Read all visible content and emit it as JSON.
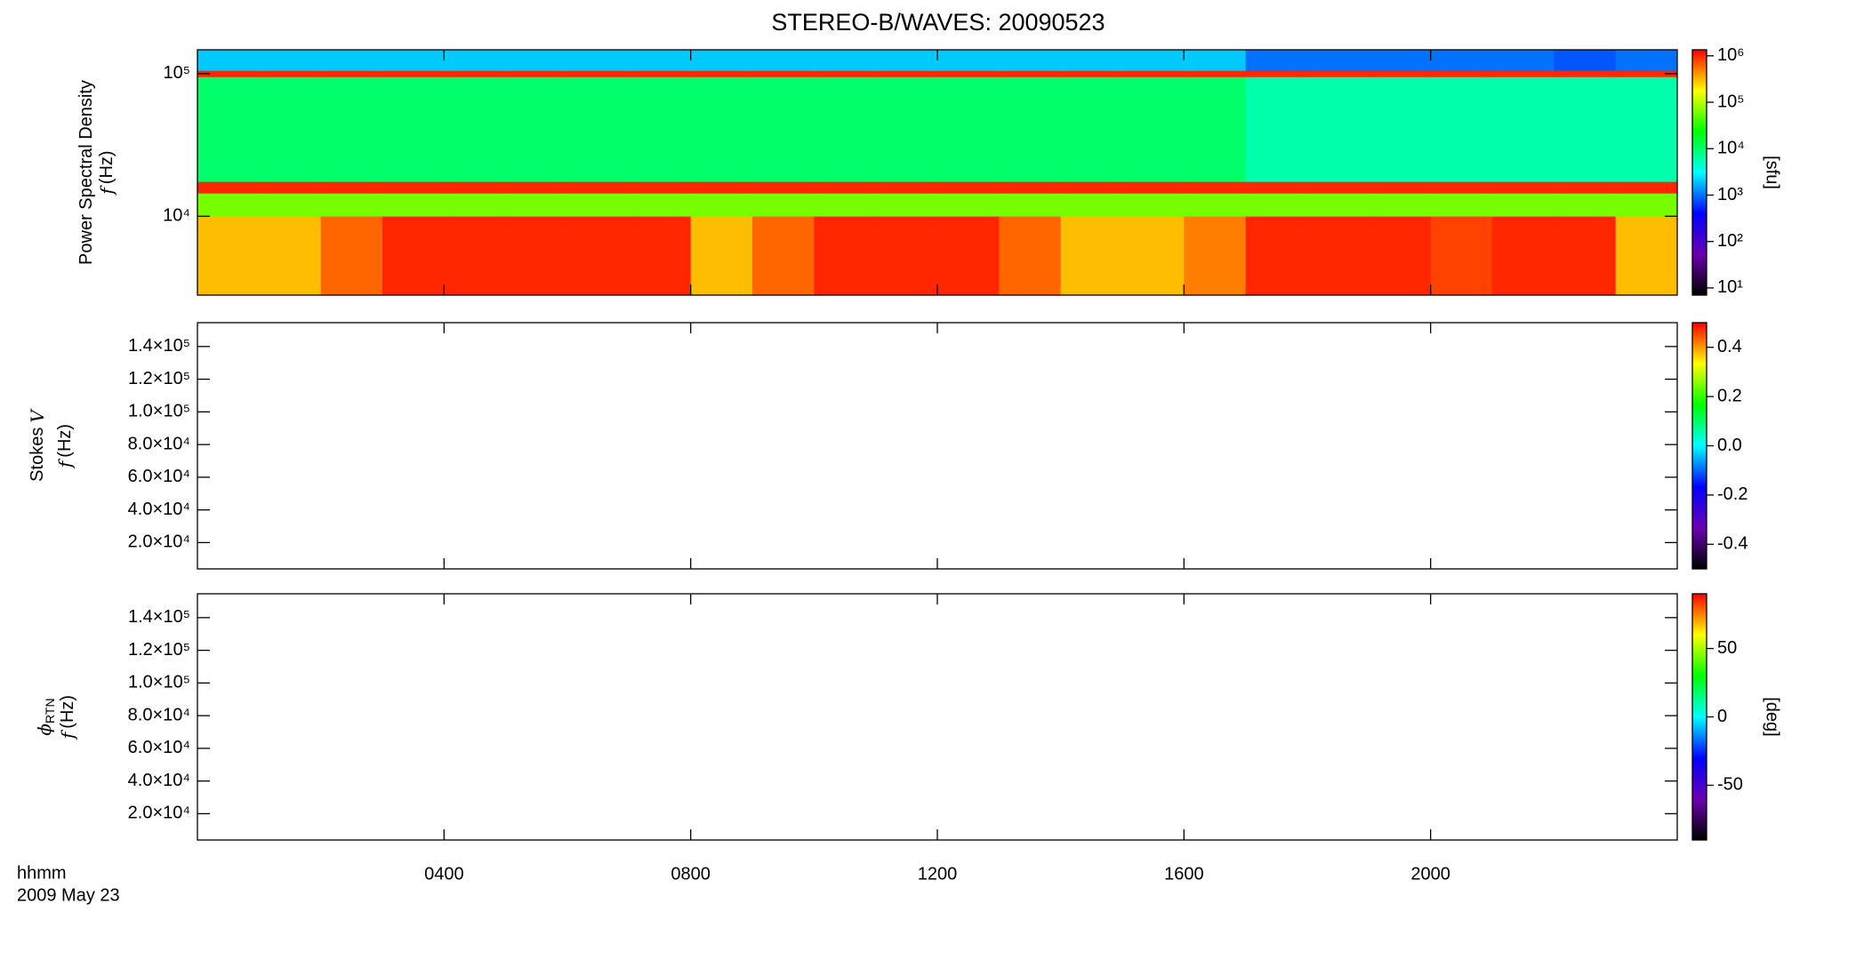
{
  "chart_data": {
    "type": "spectrogram",
    "title": "STEREO-B/WAVES: 20090523",
    "x_label": "hhmm",
    "date_label": "2009 May 23",
    "xlim": [
      0,
      24
    ],
    "xticks": [
      {
        "value": 4,
        "label": "0400"
      },
      {
        "value": 8,
        "label": "0800"
      },
      {
        "value": 12,
        "label": "1200"
      },
      {
        "value": 16,
        "label": "1600"
      },
      {
        "value": 20,
        "label": "2000"
      }
    ],
    "colorscale": [
      "#000000",
      "#6a00b0",
      "#0000ff",
      "#00ffff",
      "#00ff00",
      "#ffff00",
      "#ff0000"
    ],
    "panels": [
      {
        "ylabel": "Power Spectral Density",
        "f_symbol": "f",
        "f_unit": "(Hz)",
        "ylog": true,
        "ylim": [
          2800,
          147000
        ],
        "yticks": [
          {
            "value": 10000,
            "label": "10⁴"
          },
          {
            "value": 100000,
            "label": "10⁵"
          }
        ],
        "time_edges": [
          0,
          1,
          2,
          3,
          4,
          5,
          6,
          7,
          8,
          9,
          10,
          11,
          12,
          13,
          14,
          15,
          16,
          17,
          18,
          19,
          20,
          21,
          22,
          23,
          24
        ],
        "freq_edges": [
          2800,
          10000,
          14500,
          17500,
          95000,
          105000,
          147000
        ],
        "z": [
          [
            300000,
            300000,
            600000,
            1000000,
            1000000,
            1000000,
            1000000,
            1000000,
            300000,
            600000,
            1000000,
            1000000,
            1000000,
            600000,
            300000,
            300000,
            500000,
            1000000,
            1000000,
            1000000,
            800000,
            1000000,
            1000000,
            300000
          ],
          [
            60000,
            60000,
            60000,
            60000,
            60000,
            60000,
            60000,
            60000,
            60000,
            60000,
            60000,
            60000,
            60000,
            60000,
            60000,
            60000,
            60000,
            60000,
            60000,
            60000,
            60000,
            60000,
            60000,
            60000
          ],
          [
            1000000,
            1000000,
            1000000,
            1000000,
            1000000,
            1000000,
            1000000,
            1000000,
            1000000,
            1000000,
            1000000,
            1000000,
            1000000,
            1000000,
            1000000,
            1000000,
            1000000,
            1000000,
            1000000,
            1000000,
            1000000,
            1000000,
            1000000,
            1000000
          ],
          [
            10000,
            10000,
            10000,
            10000,
            10000,
            10000,
            10000,
            10000,
            10000,
            10000,
            10000,
            10000,
            10000,
            10000,
            10000,
            10000,
            10000,
            6000,
            6000,
            6000,
            6000,
            6000,
            6000,
            6000
          ],
          [
            1000000,
            1000000,
            1000000,
            1000000,
            1000000,
            1000000,
            1000000,
            1000000,
            1000000,
            1000000,
            1000000,
            1000000,
            1000000,
            1000000,
            1000000,
            1000000,
            1000000,
            1000000,
            1000000,
            1000000,
            1000000,
            1000000,
            1000000,
            1000000
          ],
          [
            2000,
            2000,
            2000,
            2000,
            2000,
            2000,
            2000,
            2000,
            2000,
            2000,
            2000,
            2000,
            2000,
            2000,
            2000,
            2000,
            2000,
            1000,
            1000,
            1000,
            1000,
            1000,
            800,
            1000
          ]
        ],
        "clog": true,
        "clim": [
          7,
          1350000
        ],
        "cticks": [
          {
            "value": 10,
            "label": "10¹"
          },
          {
            "value": 100,
            "label": "10²"
          },
          {
            "value": 1000,
            "label": "10³"
          },
          {
            "value": 10000,
            "label": "10⁴"
          },
          {
            "value": 100000,
            "label": "10⁵"
          },
          {
            "value": 1000000,
            "label": "10⁶"
          }
        ],
        "clabel": "[sfu]"
      },
      {
        "ylabel": "Stokes",
        "ylabel_symbol": "V",
        "f_symbol": "f",
        "f_unit": "(Hz)",
        "ylog": false,
        "ylim": [
          3900,
          154600
        ],
        "yticks": [
          {
            "value": 20000,
            "label": "2.0×10⁴"
          },
          {
            "value": 40000,
            "label": "4.0×10⁴"
          },
          {
            "value": 60000,
            "label": "6.0×10⁴"
          },
          {
            "value": 80000,
            "label": "8.0×10⁴"
          },
          {
            "value": 100000,
            "label": "1.0×10⁵"
          },
          {
            "value": 120000,
            "label": "1.2×10⁵"
          },
          {
            "value": 140000,
            "label": "1.4×10⁵"
          }
        ],
        "clog": false,
        "clim": [
          -0.5,
          0.5
        ],
        "cticks": [
          -0.4,
          -0.2,
          {
            "value": 0,
            "label": "0.0"
          },
          0.2,
          0.4
        ]
      },
      {
        "ylabel_symbol": "ϕ",
        "ylabel_sub": "RTN",
        "f_symbol": "f",
        "f_unit": "(Hz)",
        "ylog": false,
        "ylim": [
          3900,
          154600
        ],
        "yticks": [
          {
            "value": 20000,
            "label": "2.0×10⁴"
          },
          {
            "value": 40000,
            "label": "4.0×10⁴"
          },
          {
            "value": 60000,
            "label": "6.0×10⁴"
          },
          {
            "value": 80000,
            "label": "8.0×10⁴"
          },
          {
            "value": 100000,
            "label": "1.0×10⁵"
          },
          {
            "value": 120000,
            "label": "1.2×10⁵"
          },
          {
            "value": 140000,
            "label": "1.4×10⁵"
          }
        ],
        "clog": false,
        "clim": [
          -90,
          90
        ],
        "cticks": [
          -50,
          0,
          50
        ],
        "clabel": "[deg]"
      }
    ]
  }
}
